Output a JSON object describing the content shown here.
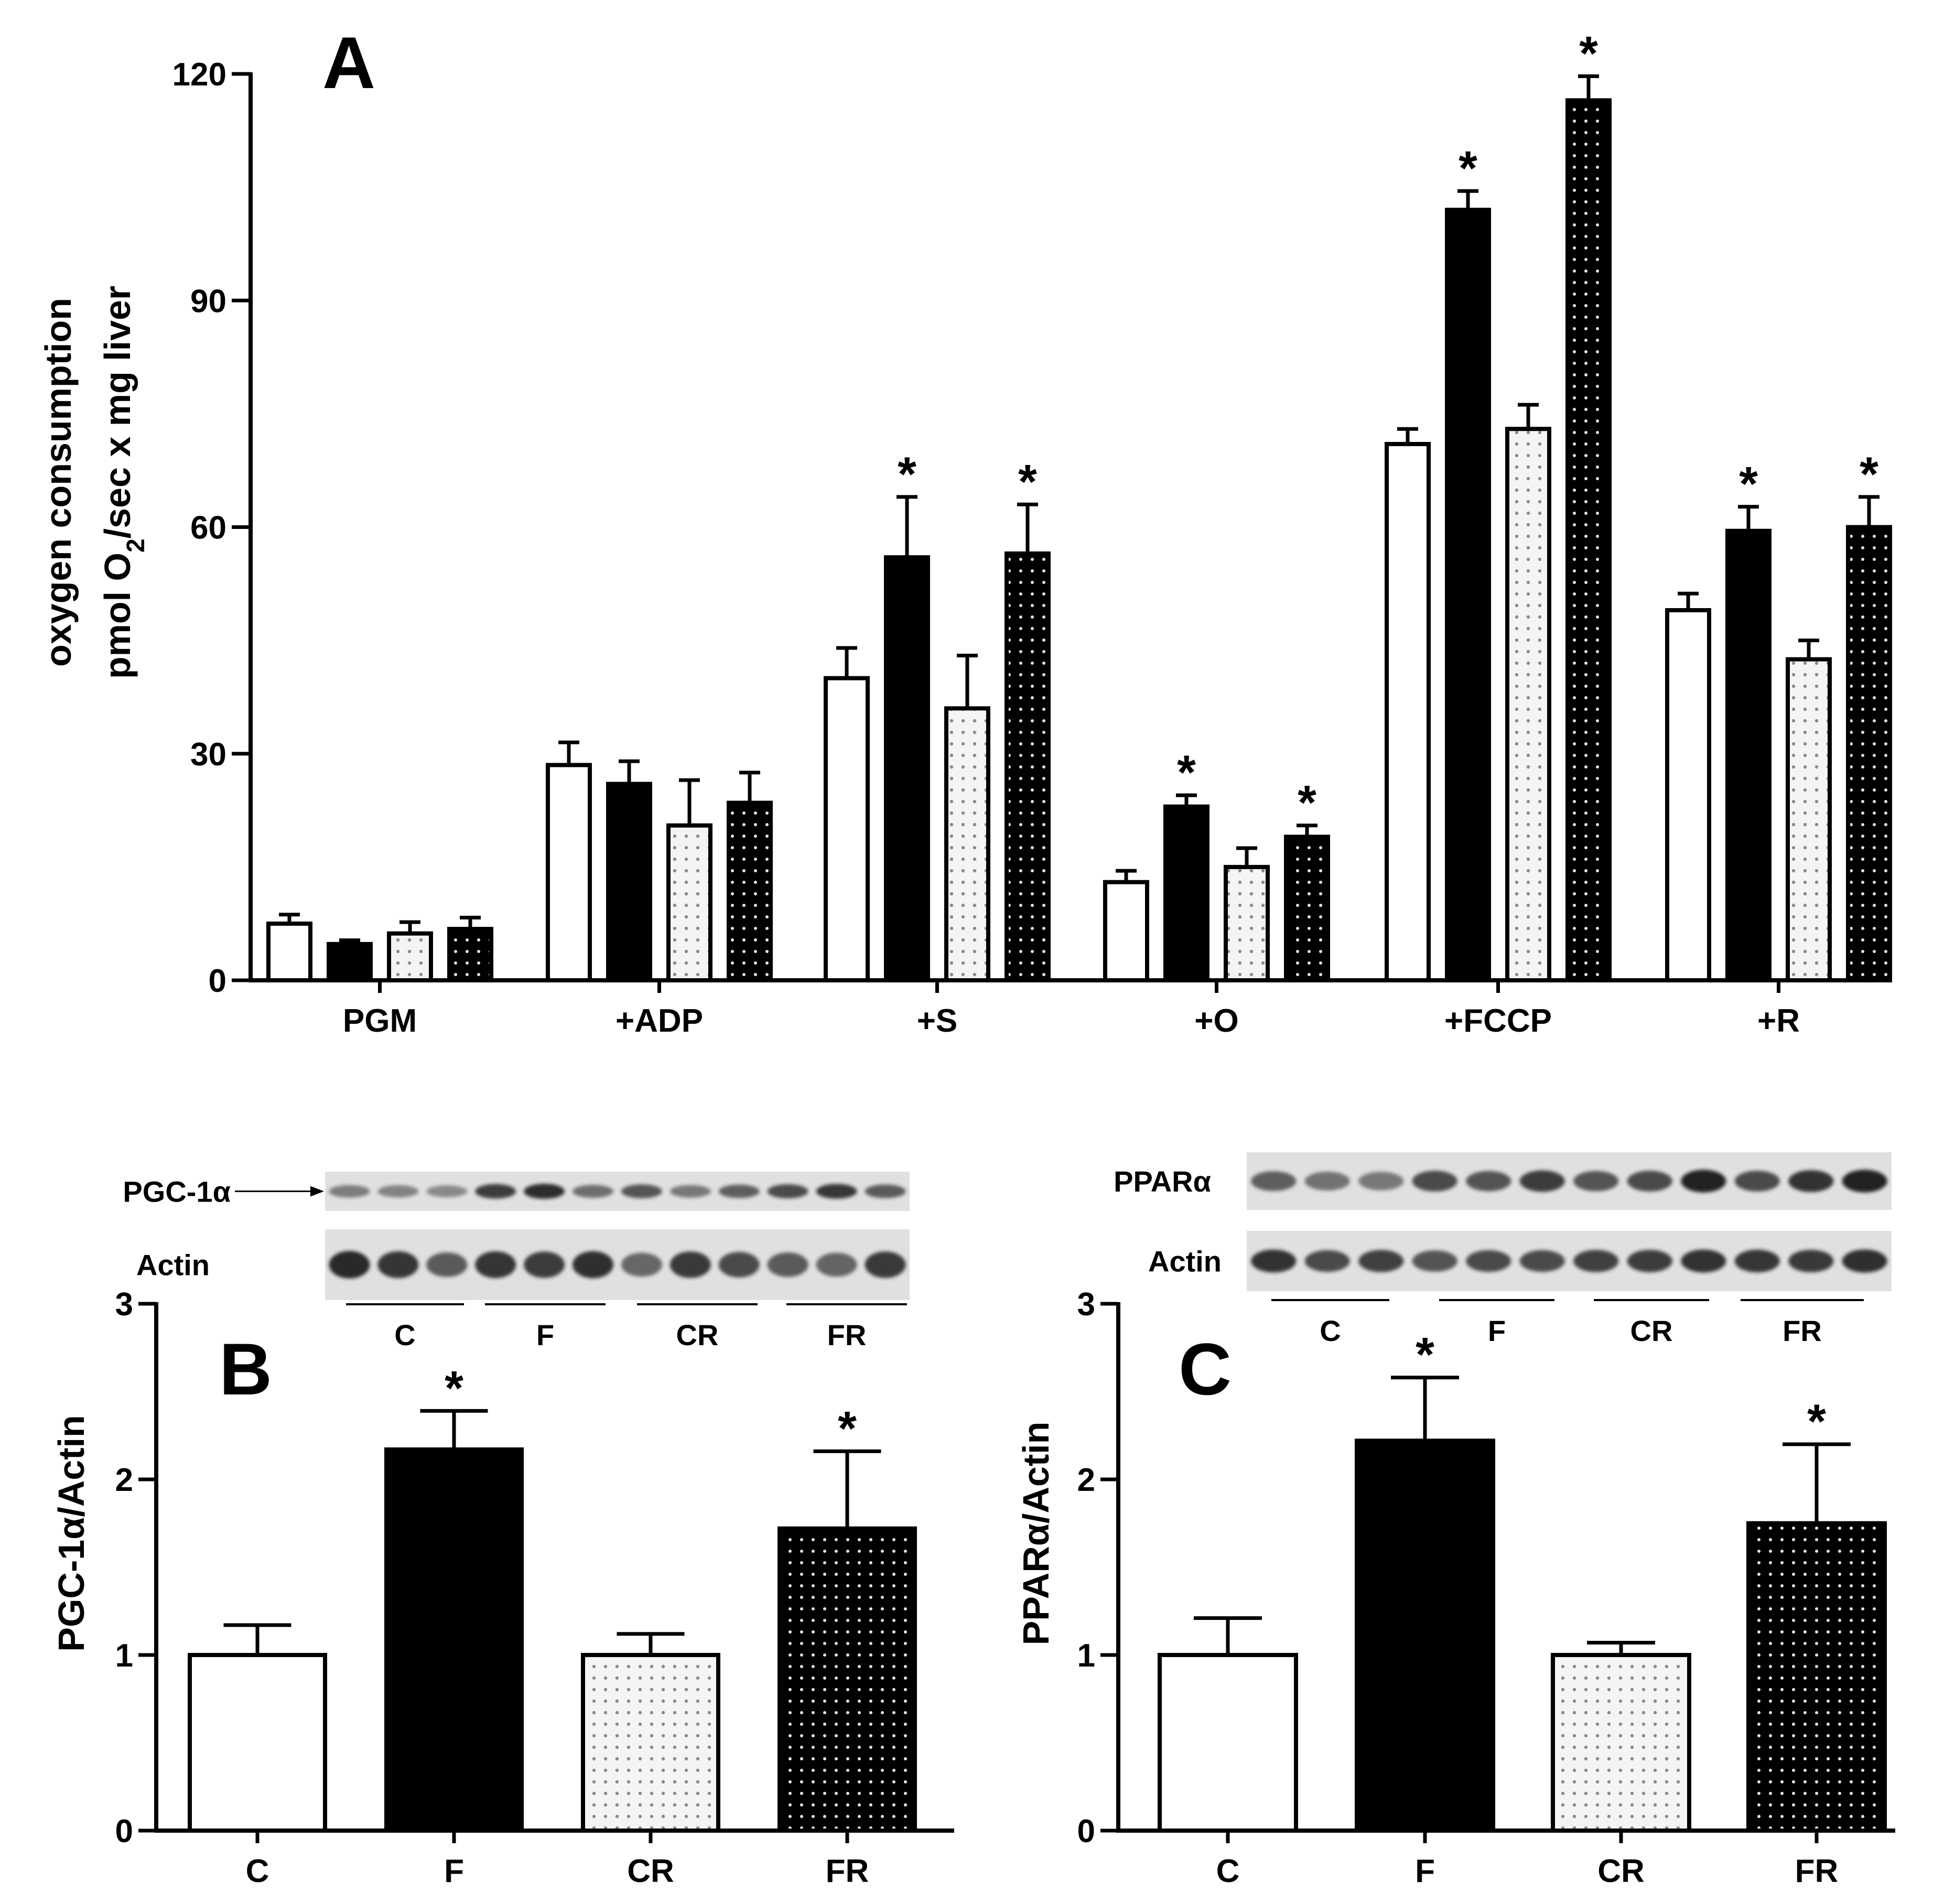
{
  "colors": {
    "axis": "#000000",
    "C": "#ffffff",
    "F": "#000000",
    "CR_bg": "#f4f4f4",
    "CR_dot": "#8a8a8a",
    "FR_bg": "#000000",
    "FR_dot": "#e8e8e8",
    "blot_bg": "#e0e0e0",
    "band": "#1c1c1c"
  },
  "chart_data": [
    {
      "id": "A",
      "type": "bar",
      "panel_label": "A",
      "ylabel_line1": "oxygen consumption",
      "ylabel_line2_prefix": "pmol O",
      "ylabel_line2_sub": "2",
      "ylabel_line2_suffix": "/sec x mg liver",
      "ylim": [
        0,
        120
      ],
      "yticks": [
        "0",
        "30",
        "60",
        "90",
        "120"
      ],
      "categories": [
        "PGM",
        "+ADP",
        "+S",
        "+O",
        "+FCCP",
        "+R"
      ],
      "series": [
        {
          "name": "C",
          "pattern": "white",
          "values": [
            7.5,
            28.5,
            40,
            13,
            71,
            49
          ],
          "errors": [
            1.2,
            3,
            4,
            1.5,
            2,
            2.2
          ],
          "sig": [
            false,
            false,
            false,
            false,
            false,
            false
          ]
        },
        {
          "name": "F",
          "pattern": "black",
          "values": [
            4.8,
            26,
            56,
            23,
            102,
            59.5
          ],
          "errors": [
            0.5,
            3,
            8,
            1.5,
            2.5,
            3.2
          ],
          "sig": [
            false,
            false,
            true,
            true,
            true,
            true
          ]
        },
        {
          "name": "CR",
          "pattern": "dots-light",
          "values": [
            6.2,
            20.5,
            36,
            15,
            73,
            42.5
          ],
          "errors": [
            1.5,
            6,
            7,
            2.5,
            3.2,
            2.5
          ],
          "sig": [
            false,
            false,
            false,
            false,
            false,
            false
          ]
        },
        {
          "name": "FR",
          "pattern": "dots-dark",
          "values": [
            6.8,
            23.5,
            56.5,
            19,
            116.5,
            60
          ],
          "errors": [
            1.5,
            4,
            6.5,
            1.5,
            3.2,
            4
          ],
          "sig": [
            false,
            false,
            true,
            true,
            true,
            true
          ]
        }
      ],
      "sig_symbol": "*"
    },
    {
      "id": "B",
      "type": "bar",
      "panel_label": "B",
      "ylabel": "PGC-1α/Actin",
      "ylim": [
        0,
        3
      ],
      "yticks": [
        "0",
        "1",
        "2",
        "3"
      ],
      "categories": [
        "C",
        "F",
        "CR",
        "FR"
      ],
      "patterns": [
        "white",
        "black",
        "dots-light",
        "dots-dark"
      ],
      "values": [
        1.0,
        2.17,
        1.0,
        1.72
      ],
      "errors": [
        0.17,
        0.22,
        0.12,
        0.44
      ],
      "sig": [
        false,
        true,
        false,
        true
      ],
      "sig_symbol": "*",
      "blots": [
        {
          "label": "PGC-1α",
          "arrow": true,
          "intensities": [
            0.42,
            0.38,
            0.34,
            0.8,
            0.9,
            0.5,
            0.66,
            0.44,
            0.6,
            0.72,
            0.84,
            0.62
          ]
        },
        {
          "label": "Actin",
          "arrow": false,
          "intensities": [
            0.92,
            0.85,
            0.62,
            0.85,
            0.8,
            0.88,
            0.55,
            0.82,
            0.72,
            0.62,
            0.56,
            0.82
          ]
        }
      ],
      "lane_groups": [
        "C",
        "F",
        "CR",
        "FR"
      ]
    },
    {
      "id": "C",
      "type": "bar",
      "panel_label": "C",
      "ylabel": "PPARα/Actin",
      "ylim": [
        0,
        3
      ],
      "yticks": [
        "0",
        "1",
        "2",
        "3"
      ],
      "categories": [
        "C",
        "F",
        "CR",
        "FR"
      ],
      "patterns": [
        "white",
        "black",
        "dots-light",
        "dots-dark"
      ],
      "values": [
        1.0,
        2.22,
        1.0,
        1.75
      ],
      "errors": [
        0.21,
        0.36,
        0.07,
        0.45
      ],
      "sig": [
        false,
        true,
        false,
        true
      ],
      "sig_symbol": "*",
      "blots": [
        {
          "label": "PPARα",
          "arrow": false,
          "intensities": [
            0.6,
            0.48,
            0.44,
            0.72,
            0.66,
            0.8,
            0.66,
            0.72,
            0.96,
            0.72,
            0.86,
            0.96
          ]
        },
        {
          "label": "Actin",
          "arrow": false,
          "intensities": [
            0.86,
            0.72,
            0.78,
            0.66,
            0.72,
            0.72,
            0.78,
            0.8,
            0.86,
            0.84,
            0.82,
            0.88
          ]
        }
      ],
      "lane_groups": [
        "C",
        "F",
        "CR",
        "FR"
      ]
    }
  ]
}
